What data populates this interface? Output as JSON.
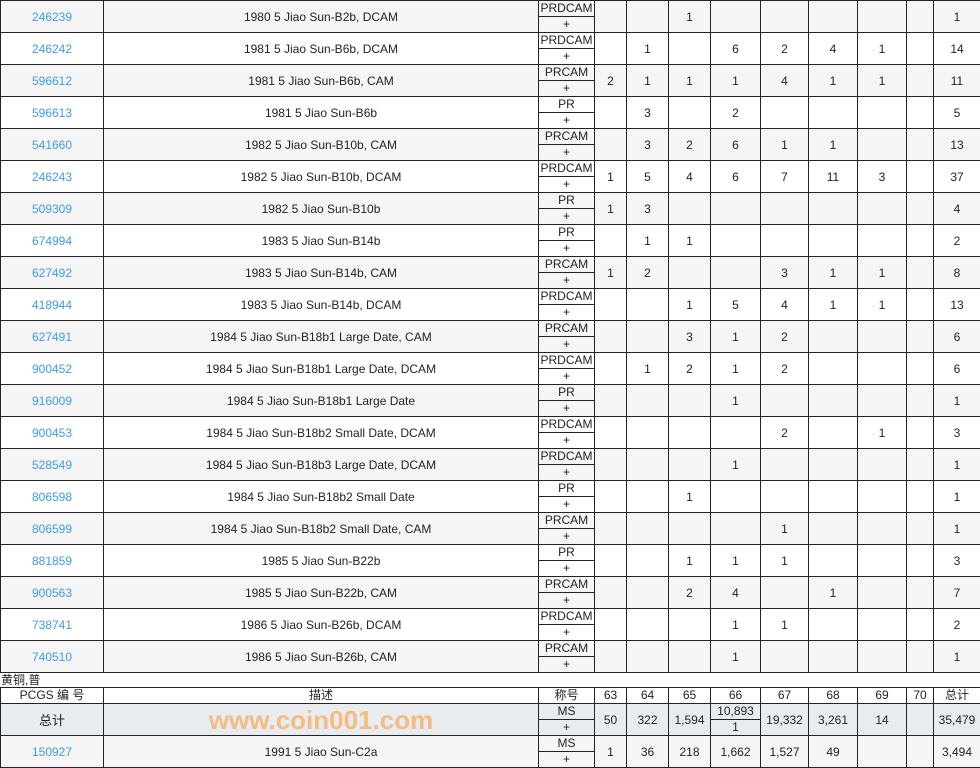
{
  "columns": {
    "pcgs": "PCGS 编 号",
    "description": "描述",
    "designation": "称号",
    "grades": [
      "63",
      "64",
      "65",
      "66",
      "67",
      "68",
      "69",
      "70"
    ],
    "total": "总计"
  },
  "rows": [
    {
      "pcgs": "246239",
      "description": "1980 5 Jiao Sun-B2b, DCAM",
      "designation": "PRDCAM",
      "plus": "+",
      "counts": [
        "",
        "",
        "1",
        "",
        "",
        "",
        "",
        ""
      ],
      "total": "1"
    },
    {
      "pcgs": "246242",
      "description": "1981 5 Jiao Sun-B6b, DCAM",
      "designation": "PRDCAM",
      "plus": "+",
      "counts": [
        "",
        "1",
        "",
        "6",
        "2",
        "4",
        "1",
        ""
      ],
      "total": "14"
    },
    {
      "pcgs": "596612",
      "description": "1981 5 Jiao Sun-B6b, CAM",
      "designation": "PRCAM",
      "plus": "+",
      "counts": [
        "2",
        "1",
        "1",
        "1",
        "4",
        "1",
        "1",
        ""
      ],
      "total": "11"
    },
    {
      "pcgs": "596613",
      "description": "1981 5 Jiao Sun-B6b",
      "designation": "PR",
      "plus": "+",
      "counts": [
        "",
        "3",
        "",
        "2",
        "",
        "",
        "",
        ""
      ],
      "total": "5"
    },
    {
      "pcgs": "541660",
      "description": "1982 5 Jiao Sun-B10b, CAM",
      "designation": "PRCAM",
      "plus": "+",
      "counts": [
        "",
        "3",
        "2",
        "6",
        "1",
        "1",
        "",
        ""
      ],
      "total": "13"
    },
    {
      "pcgs": "246243",
      "description": "1982 5 Jiao Sun-B10b, DCAM",
      "designation": "PRDCAM",
      "plus": "+",
      "counts": [
        "1",
        "5",
        "4",
        "6",
        "7",
        "11",
        "3",
        ""
      ],
      "total": "37"
    },
    {
      "pcgs": "509309",
      "description": "1982 5 Jiao Sun-B10b",
      "designation": "PR",
      "plus": "+",
      "counts": [
        "1",
        "3",
        "",
        "",
        "",
        "",
        "",
        ""
      ],
      "total": "4"
    },
    {
      "pcgs": "674994",
      "description": "1983 5 Jiao Sun-B14b",
      "designation": "PR",
      "plus": "+",
      "counts": [
        "",
        "1",
        "1",
        "",
        "",
        "",
        "",
        ""
      ],
      "total": "2"
    },
    {
      "pcgs": "627492",
      "description": "1983 5 Jiao Sun-B14b, CAM",
      "designation": "PRCAM",
      "plus": "+",
      "counts": [
        "1",
        "2",
        "",
        "",
        "3",
        "1",
        "1",
        ""
      ],
      "total": "8"
    },
    {
      "pcgs": "418944",
      "description": "1983 5 Jiao Sun-B14b, DCAM",
      "designation": "PRDCAM",
      "plus": "+",
      "counts": [
        "",
        "",
        "1",
        "5",
        "4",
        "1",
        "1",
        ""
      ],
      "total": "13"
    },
    {
      "pcgs": "627491",
      "description": "1984 5 Jiao Sun-B18b1 Large Date, CAM",
      "designation": "PRCAM",
      "plus": "+",
      "counts": [
        "",
        "",
        "3",
        "1",
        "2",
        "",
        "",
        ""
      ],
      "total": "6"
    },
    {
      "pcgs": "900452",
      "description": "1984 5 Jiao Sun-B18b1 Large Date, DCAM",
      "designation": "PRDCAM",
      "plus": "+",
      "counts": [
        "",
        "1",
        "2",
        "1",
        "2",
        "",
        "",
        ""
      ],
      "total": "6"
    },
    {
      "pcgs": "916009",
      "description": "1984 5 Jiao Sun-B18b1 Large Date",
      "designation": "PR",
      "plus": "+",
      "counts": [
        "",
        "",
        "",
        "1",
        "",
        "",
        "",
        ""
      ],
      "total": "1"
    },
    {
      "pcgs": "900453",
      "description": "1984 5 Jiao Sun-B18b2 Small Date, DCAM",
      "designation": "PRDCAM",
      "plus": "+",
      "counts": [
        "",
        "",
        "",
        "",
        "2",
        "",
        "1",
        ""
      ],
      "total": "3"
    },
    {
      "pcgs": "528549",
      "description": "1984 5 Jiao Sun-B18b3 Large Date, DCAM",
      "designation": "PRDCAM",
      "plus": "+",
      "counts": [
        "",
        "",
        "",
        "1",
        "",
        "",
        "",
        ""
      ],
      "total": "1"
    },
    {
      "pcgs": "806598",
      "description": "1984 5 Jiao Sun-B18b2 Small Date",
      "designation": "PR",
      "plus": "+",
      "counts": [
        "",
        "",
        "1",
        "",
        "",
        "",
        "",
        ""
      ],
      "total": "1"
    },
    {
      "pcgs": "806599",
      "description": "1984 5 Jiao Sun-B18b2 Small Date, CAM",
      "designation": "PRCAM",
      "plus": "+",
      "counts": [
        "",
        "",
        "",
        "",
        "1",
        "",
        "",
        ""
      ],
      "total": "1"
    },
    {
      "pcgs": "881859",
      "description": "1985 5 Jiao Sun-B22b",
      "designation": "PR",
      "plus": "+",
      "counts": [
        "",
        "",
        "1",
        "1",
        "1",
        "",
        "",
        ""
      ],
      "total": "3"
    },
    {
      "pcgs": "900563",
      "description": "1985 5 Jiao Sun-B22b, CAM",
      "designation": "PRCAM",
      "plus": "+",
      "counts": [
        "",
        "",
        "2",
        "4",
        "",
        "1",
        "",
        ""
      ],
      "total": "7"
    },
    {
      "pcgs": "738741",
      "description": "1986 5 Jiao Sun-B26b, DCAM",
      "designation": "PRDCAM",
      "plus": "+",
      "counts": [
        "",
        "",
        "",
        "1",
        "1",
        "",
        "",
        ""
      ],
      "total": "2"
    },
    {
      "pcgs": "740510",
      "description": "1986 5 Jiao Sun-B26b, CAM",
      "designation": "PRCAM",
      "plus": "+",
      "counts": [
        "",
        "",
        "",
        "1",
        "",
        "",
        "",
        ""
      ],
      "total": "1"
    }
  ],
  "section": {
    "title": "黄铜,普",
    "total_row": {
      "label": "总计",
      "designation": "MS",
      "plus": "+",
      "counts": [
        "50",
        "322",
        "1,594",
        "10,893",
        "19,332",
        "3,261",
        "14",
        ""
      ],
      "count_66_plus": "1",
      "total": "35,479"
    },
    "rows": [
      {
        "pcgs": "150927",
        "description": "1991 5 Jiao Sun-C2a",
        "designation": "MS",
        "plus": "+",
        "counts": [
          "1",
          "36",
          "218",
          "1,662",
          "1,527",
          "49",
          "",
          ""
        ],
        "total": "3,494"
      }
    ]
  },
  "watermark": "www.coin001.com",
  "colors": {
    "link": "#3d9be9",
    "total_row_bg": "#e8ecef",
    "watermark": "#ff9628"
  }
}
